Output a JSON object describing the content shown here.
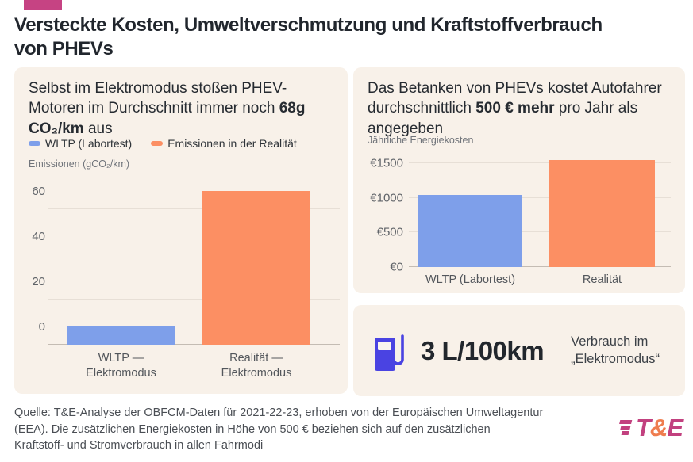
{
  "page": {
    "title_line1": "Versteckte Kosten, Umweltverschmutzung und Kraftstoffverbrauch",
    "title_line2": "von PHEVs",
    "accent_color": "#c64383",
    "card_background": "#f8f1e9"
  },
  "left_card": {
    "heading": {
      "pre": "Selbst im Elektromodus stoßen PHEV-Motoren im Durchschnitt immer noch ",
      "bold": "68g CO₂/km",
      "post": " aus"
    }
  },
  "right_card": {
    "heading": {
      "pre": "Das Betanken von PHEVs kostet Autofahrer durchschnittlich ",
      "bold": "500 € mehr",
      "post": " pro Jahr als angegeben"
    }
  },
  "consumption_card": {
    "value": "3 L/100km",
    "label": "Verbrauch im\n„Elektromodus“",
    "icon": "fuel-pump-icon",
    "icon_color": "#4a43e2"
  },
  "footer": {
    "line1": "Quelle: T&E-Analyse der OBFCM-Daten für 2021-22-23, erhoben von der Europäischen Umweltagentur",
    "line2": "(EEA). Die zusätzlichen Energiekosten in Höhe von 500 € beziehen sich auf den zusätzlichen",
    "line3": "Kraftstoff- und Stromverbrauch in allen Fahrmodi",
    "logo": {
      "t": "T",
      "amp": "&",
      "e": "E",
      "magenta": "#c2417f",
      "orange": "#ef7d4f"
    }
  },
  "chart_data": [
    {
      "type": "bar",
      "title": "Selbst im Elektromodus stoßen PHEV-Motoren im Durchschnitt immer noch 68g CO₂/km aus",
      "ylabel": "Emissionen (gCO₂/km)",
      "categories": [
        "WLTP — Elektromodus",
        "Realität — Elektromodus"
      ],
      "values": [
        8,
        68
      ],
      "colors": [
        "#7e9fea",
        "#fc8f63"
      ],
      "legend": [
        "WLTP (Labortest)",
        "Emissionen in der Realität"
      ],
      "legend_position": "top",
      "ylim": [
        0,
        68
      ],
      "yticks": [
        0,
        20,
        40,
        60
      ],
      "ytick_labels": [
        "0",
        "20",
        "40",
        "60"
      ],
      "grid": true
    },
    {
      "type": "bar",
      "title": "Das Betanken von PHEVs kostet Autofahrer durchschnittlich 500 € mehr pro Jahr als angegeben",
      "ylabel": "Jährliche Energiekosten",
      "categories": [
        "WLTP (Labortest)",
        "Realität"
      ],
      "values": [
        1050,
        1550
      ],
      "colors": [
        "#7e9fea",
        "#fc8f63"
      ],
      "ylim": [
        0,
        1550
      ],
      "yticks": [
        0,
        500,
        1000,
        1500
      ],
      "ytick_labels": [
        "€0",
        "€500",
        "€1000",
        "€1500"
      ],
      "grid": true
    }
  ]
}
